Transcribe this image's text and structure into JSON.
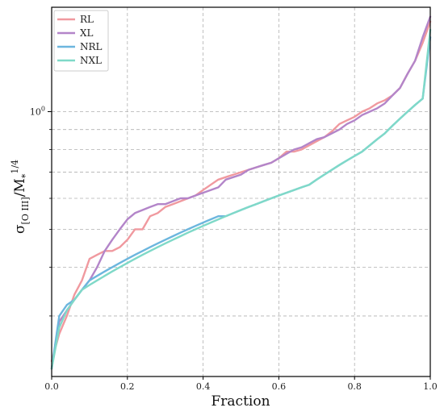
{
  "chart_data": {
    "type": "line",
    "xlabel": "Fraction",
    "ylabel_parts": {
      "sigma": "σ",
      "sub": "[O III]",
      "slash_m": "/M",
      "star": "*",
      "exp": "1/4"
    },
    "xlim": [
      0.0,
      1.0
    ],
    "ylim": [
      0.21,
      1.85
    ],
    "yscale": "log",
    "grid": true,
    "legend_position": "top-left",
    "x_ticks": [
      {
        "v": 0.0,
        "label": "0.0"
      },
      {
        "v": 0.2,
        "label": "0.2"
      },
      {
        "v": 0.4,
        "label": "0.4"
      },
      {
        "v": 0.6,
        "label": "0.6"
      },
      {
        "v": 0.8,
        "label": "0.8"
      },
      {
        "v": 1.0,
        "label": "1.0"
      }
    ],
    "y_major_ticks": [
      {
        "v": 1.0,
        "label": "10",
        "exp": "0"
      }
    ],
    "y_minor_ticks": [
      0.3,
      0.4,
      0.5,
      0.6,
      0.7,
      0.8,
      0.9,
      2.0
    ],
    "series": [
      {
        "name": "RL",
        "color": "#f0999f",
        "x": [
          0.0,
          0.02,
          0.04,
          0.06,
          0.08,
          0.1,
          0.12,
          0.14,
          0.16,
          0.18,
          0.2,
          0.22,
          0.24,
          0.26,
          0.28,
          0.3,
          0.32,
          0.34,
          0.36,
          0.38,
          0.4,
          0.42,
          0.44,
          0.46,
          0.48,
          0.5,
          0.52,
          0.54,
          0.56,
          0.58,
          0.6,
          0.62,
          0.64,
          0.66,
          0.68,
          0.7,
          0.72,
          0.74,
          0.76,
          0.78,
          0.8,
          0.82,
          0.84,
          0.86,
          0.88,
          0.9,
          0.92,
          0.94,
          0.96,
          0.98,
          1.0
        ],
        "y": [
          0.23,
          0.27,
          0.3,
          0.34,
          0.37,
          0.42,
          0.43,
          0.44,
          0.44,
          0.45,
          0.47,
          0.5,
          0.5,
          0.54,
          0.55,
          0.57,
          0.58,
          0.59,
          0.6,
          0.61,
          0.63,
          0.65,
          0.67,
          0.68,
          0.69,
          0.7,
          0.71,
          0.72,
          0.73,
          0.74,
          0.76,
          0.79,
          0.79,
          0.8,
          0.82,
          0.84,
          0.86,
          0.89,
          0.93,
          0.95,
          0.97,
          1.0,
          1.02,
          1.05,
          1.07,
          1.1,
          1.15,
          1.25,
          1.35,
          1.5,
          1.7
        ]
      },
      {
        "name": "XL",
        "color": "#b385c9",
        "x": [
          0.0,
          0.02,
          0.04,
          0.06,
          0.08,
          0.1,
          0.12,
          0.14,
          0.16,
          0.18,
          0.2,
          0.22,
          0.24,
          0.26,
          0.28,
          0.3,
          0.32,
          0.34,
          0.36,
          0.38,
          0.4,
          0.42,
          0.44,
          0.46,
          0.48,
          0.5,
          0.52,
          0.54,
          0.56,
          0.58,
          0.6,
          0.62,
          0.64,
          0.66,
          0.68,
          0.7,
          0.72,
          0.74,
          0.76,
          0.78,
          0.8,
          0.82,
          0.84,
          0.86,
          0.88,
          0.9,
          0.92,
          0.94,
          0.96,
          0.98,
          1.0
        ],
        "y": [
          0.22,
          0.29,
          0.31,
          0.33,
          0.35,
          0.37,
          0.4,
          0.44,
          0.47,
          0.5,
          0.53,
          0.55,
          0.56,
          0.57,
          0.58,
          0.58,
          0.59,
          0.6,
          0.6,
          0.61,
          0.62,
          0.63,
          0.64,
          0.67,
          0.68,
          0.69,
          0.71,
          0.72,
          0.73,
          0.74,
          0.76,
          0.78,
          0.8,
          0.81,
          0.83,
          0.85,
          0.86,
          0.88,
          0.9,
          0.93,
          0.95,
          0.98,
          1.0,
          1.02,
          1.05,
          1.1,
          1.15,
          1.25,
          1.35,
          1.55,
          1.75
        ]
      },
      {
        "name": "NRL",
        "color": "#6cb6de",
        "x": [
          0.0,
          0.02,
          0.04,
          0.06,
          0.08,
          0.1,
          0.12,
          0.14,
          0.16,
          0.18,
          0.2,
          0.22,
          0.24,
          0.26,
          0.28,
          0.3,
          0.32,
          0.34,
          0.36,
          0.38,
          0.4,
          0.42,
          0.44,
          0.46,
          0.48,
          0.5,
          0.52,
          0.54,
          0.56,
          0.58,
          0.6,
          0.62,
          0.64,
          0.66,
          0.68,
          0.7,
          0.72,
          0.74,
          0.76,
          0.78,
          0.8,
          0.82,
          0.84,
          0.86,
          0.88,
          0.9,
          0.92,
          0.94,
          0.96,
          0.98,
          1.0
        ],
        "y": [
          0.22,
          0.3,
          0.32,
          0.33,
          0.35,
          0.37,
          0.38,
          0.39,
          0.4,
          0.41,
          0.42,
          0.43,
          0.44,
          0.45,
          0.46,
          0.47,
          0.48,
          0.49,
          0.5,
          0.51,
          0.52,
          0.53,
          0.54,
          0.54,
          0.55,
          0.56,
          0.57,
          0.58,
          0.59,
          0.6,
          0.61,
          0.62,
          0.63,
          0.64,
          0.65,
          0.67,
          0.69,
          0.71,
          0.73,
          0.75,
          0.77,
          0.79,
          0.82,
          0.85,
          0.88,
          0.92,
          0.96,
          1.0,
          1.04,
          1.08,
          1.55
        ]
      },
      {
        "name": "NXL",
        "color": "#7fd9c8",
        "x": [
          0.0,
          0.02,
          0.04,
          0.06,
          0.08,
          0.1,
          0.12,
          0.14,
          0.16,
          0.18,
          0.2,
          0.22,
          0.24,
          0.26,
          0.28,
          0.3,
          0.32,
          0.34,
          0.36,
          0.38,
          0.4,
          0.42,
          0.44,
          0.46,
          0.48,
          0.5,
          0.52,
          0.54,
          0.56,
          0.58,
          0.6,
          0.62,
          0.64,
          0.66,
          0.68,
          0.7,
          0.72,
          0.74,
          0.76,
          0.78,
          0.8,
          0.82,
          0.84,
          0.86,
          0.88,
          0.9,
          0.92,
          0.94,
          0.96,
          0.98,
          1.0
        ],
        "y": [
          0.22,
          0.28,
          0.31,
          0.33,
          0.35,
          0.36,
          0.37,
          0.38,
          0.39,
          0.4,
          0.41,
          0.42,
          0.43,
          0.44,
          0.45,
          0.46,
          0.47,
          0.48,
          0.49,
          0.5,
          0.51,
          0.52,
          0.53,
          0.54,
          0.55,
          0.56,
          0.57,
          0.58,
          0.59,
          0.6,
          0.61,
          0.62,
          0.63,
          0.64,
          0.65,
          0.67,
          0.69,
          0.71,
          0.73,
          0.75,
          0.77,
          0.79,
          0.82,
          0.85,
          0.88,
          0.92,
          0.96,
          1.0,
          1.04,
          1.08,
          1.62
        ]
      }
    ]
  }
}
